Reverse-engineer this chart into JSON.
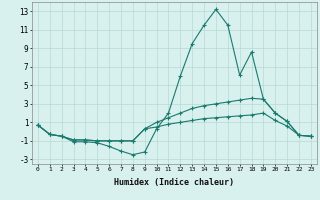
{
  "xlabel": "Humidex (Indice chaleur)",
  "x_values": [
    0,
    1,
    2,
    3,
    4,
    5,
    6,
    7,
    8,
    9,
    10,
    11,
    12,
    13,
    14,
    15,
    16,
    17,
    18,
    19,
    20,
    21,
    22,
    23
  ],
  "line1": [
    0.7,
    -0.3,
    -0.5,
    -1.1,
    -1.1,
    -1.2,
    -1.6,
    -2.1,
    -2.5,
    -2.2,
    0.3,
    2.0,
    6.0,
    9.5,
    11.5,
    13.2,
    11.5,
    6.1,
    8.6,
    3.5,
    2.0,
    1.1,
    -0.4,
    -0.5
  ],
  "line2": [
    0.7,
    -0.3,
    -0.5,
    -0.9,
    -0.9,
    -1.0,
    -1.0,
    -1.0,
    -1.0,
    0.3,
    1.0,
    1.5,
    2.0,
    2.5,
    2.8,
    3.0,
    3.2,
    3.4,
    3.6,
    3.5,
    2.0,
    1.1,
    -0.4,
    -0.5
  ],
  "line3": [
    0.7,
    -0.3,
    -0.5,
    -0.9,
    -0.9,
    -1.0,
    -1.0,
    -1.0,
    -1.0,
    0.3,
    0.5,
    0.8,
    1.0,
    1.2,
    1.4,
    1.5,
    1.6,
    1.7,
    1.8,
    2.0,
    1.2,
    0.6,
    -0.4,
    -0.5
  ],
  "line_color": "#1a7a6e",
  "bg_color": "#d8f0ee",
  "grid_color": "#b8d8d4",
  "ylim": [
    -3.5,
    14.0
  ],
  "xlim": [
    -0.5,
    23.5
  ],
  "yticks": [
    -3,
    -1,
    1,
    3,
    5,
    7,
    9,
    11,
    13
  ],
  "xticks": [
    0,
    1,
    2,
    3,
    4,
    5,
    6,
    7,
    8,
    9,
    10,
    11,
    12,
    13,
    14,
    15,
    16,
    17,
    18,
    19,
    20,
    21,
    22,
    23
  ]
}
